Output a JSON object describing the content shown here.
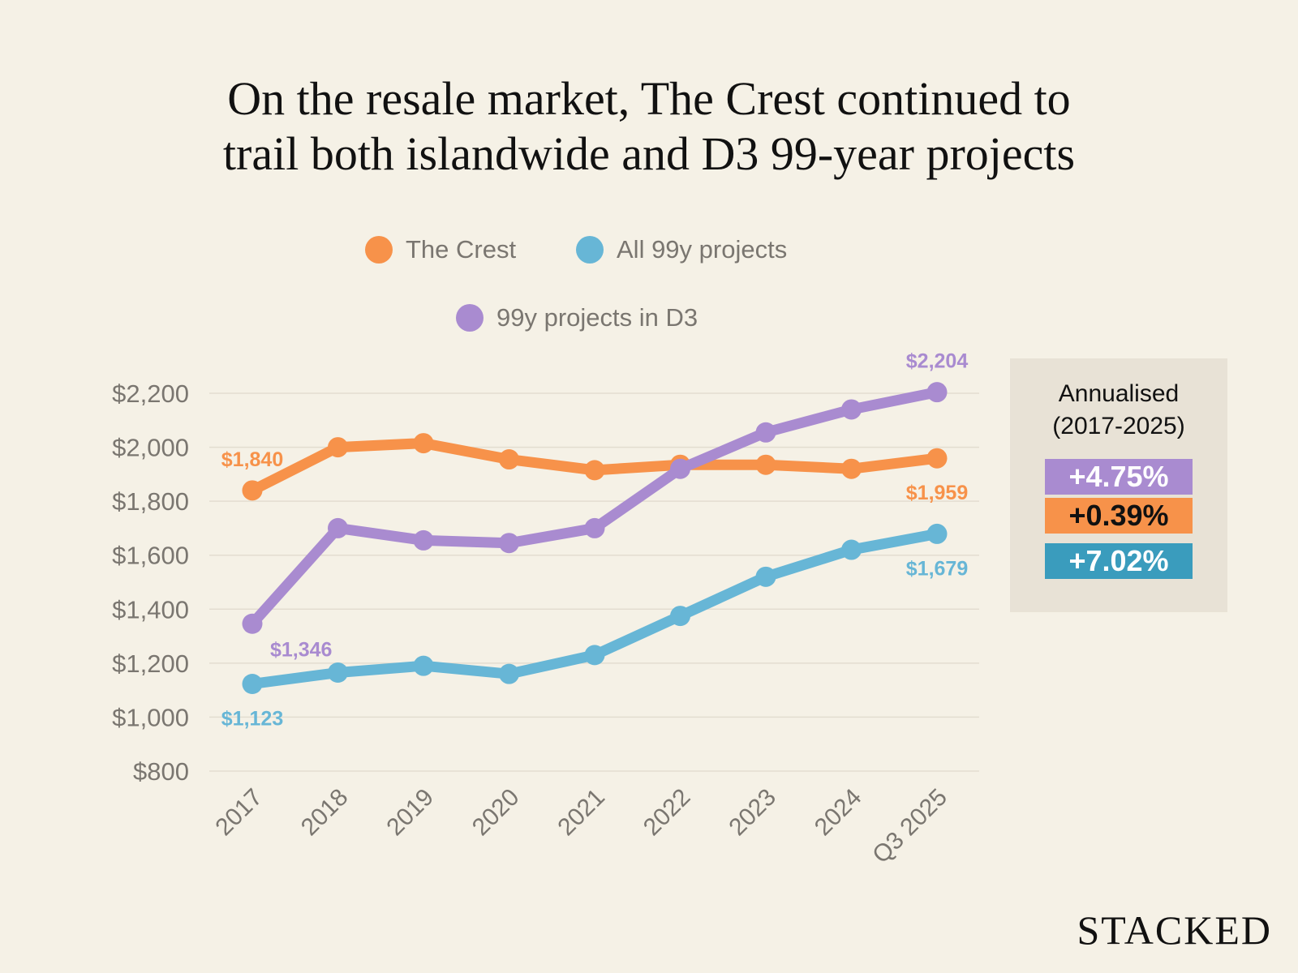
{
  "title_line1": "On the resale market, The Crest continued to",
  "title_line2": "trail both islandwide and D3 99-year projects",
  "brand": "STACKED",
  "annualised": {
    "title_line1": "Annualised",
    "title_line2": "(2017-2025)",
    "badges": [
      {
        "label": "+4.75%",
        "bg": "#a98bd0",
        "fg": "#ffffff"
      },
      {
        "label": "+0.39%",
        "bg": "#f7924a",
        "fg": "#111111"
      },
      {
        "label": "+7.02%",
        "bg": "#3a9cbd",
        "fg": "#ffffff"
      }
    ]
  },
  "chart_data": {
    "type": "line",
    "title": "On the resale market, The Crest continued to trail both islandwide and D3 99-year projects",
    "xlabel": "",
    "ylabel": "",
    "categories": [
      "2017",
      "2018",
      "2019",
      "2020",
      "2021",
      "2022",
      "2023",
      "2024",
      "Q3 2025"
    ],
    "y_ticks": [
      "$800",
      "$1,000",
      "$1,200",
      "$1,400",
      "$1,600",
      "$1,800",
      "$2,000",
      "$2,200"
    ],
    "ylim": [
      800,
      2200
    ],
    "grid": true,
    "series": [
      {
        "name": "The Crest",
        "color": "#f7924a",
        "values": [
          1840,
          2000,
          2015,
          1955,
          1915,
          1935,
          1935,
          1920,
          1959
        ],
        "labels": [
          {
            "index": 0,
            "text": "$1,840",
            "pos": "above"
          },
          {
            "index": 8,
            "text": "$1,959",
            "pos": "below"
          }
        ]
      },
      {
        "name": "All 99y projects",
        "color": "#67b6d6",
        "values": [
          1123,
          1165,
          1190,
          1160,
          1230,
          1375,
          1520,
          1620,
          1679
        ],
        "labels": [
          {
            "index": 0,
            "text": "$1,123",
            "pos": "below"
          },
          {
            "index": 8,
            "text": "$1,679",
            "pos": "below"
          }
        ]
      },
      {
        "name": "99y projects in D3",
        "color": "#a98bd0",
        "values": [
          1346,
          1700,
          1655,
          1645,
          1700,
          1920,
          2055,
          2140,
          2204
        ],
        "labels": [
          {
            "index": 0,
            "text": "$1,346",
            "pos": "below-right"
          },
          {
            "index": 8,
            "text": "$2,204",
            "pos": "above"
          }
        ]
      }
    ]
  }
}
